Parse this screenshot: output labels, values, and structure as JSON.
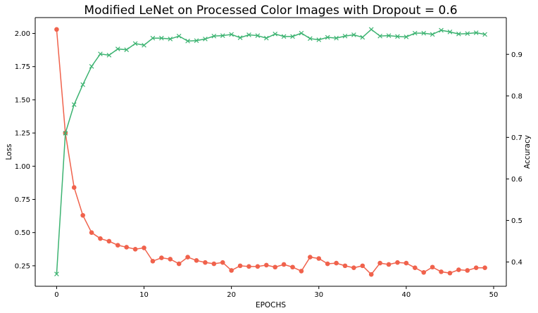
{
  "chart_data": {
    "type": "line",
    "title": "Modified LeNet on Processed Color Images with Dropout = 0.6",
    "xlabel": "EPOCHS",
    "ylabel_left": "Loss",
    "ylabel_right": "Accuracy",
    "xlim": [
      -2.45,
      51.45
    ],
    "ylim_left": [
      0.0957,
      2.1193
    ],
    "ylim_right": [
      0.3415,
      0.9885
    ],
    "x_ticks": [
      0,
      10,
      20,
      30,
      40,
      50
    ],
    "y_left_ticks": [
      0.25,
      0.5,
      0.75,
      1.0,
      1.25,
      1.5,
      1.75,
      2.0
    ],
    "y_left_tick_labels": [
      "0.25",
      "0.50",
      "0.75",
      "1.00",
      "1.25",
      "1.50",
      "1.75",
      "2.00"
    ],
    "y_right_ticks": [
      0.4,
      0.5,
      0.6,
      0.7,
      0.8,
      0.9
    ],
    "y_right_tick_labels": [
      "0.4",
      "0.5",
      "0.6",
      "0.7",
      "0.8",
      "0.9"
    ],
    "grid": false,
    "legend": false,
    "series": [
      {
        "axis": "left",
        "marker": "circle",
        "color": "#f0624c",
        "x": [
          0,
          1,
          2,
          3,
          4,
          5,
          6,
          7,
          8,
          9,
          10,
          11,
          12,
          13,
          14,
          15,
          16,
          17,
          18,
          19,
          20,
          21,
          22,
          23,
          24,
          25,
          26,
          27,
          28,
          29,
          30,
          31,
          32,
          33,
          34,
          35,
          36,
          37,
          38,
          39,
          40,
          41,
          42,
          43,
          44,
          45,
          46,
          47,
          48,
          49
        ],
        "values": [
          2.03,
          1.25,
          0.84,
          0.63,
          0.5,
          0.455,
          0.435,
          0.405,
          0.39,
          0.375,
          0.385,
          0.285,
          0.31,
          0.3,
          0.265,
          0.315,
          0.29,
          0.275,
          0.265,
          0.275,
          0.215,
          0.25,
          0.245,
          0.245,
          0.255,
          0.24,
          0.26,
          0.24,
          0.21,
          0.315,
          0.305,
          0.265,
          0.27,
          0.25,
          0.235,
          0.25,
          0.185,
          0.27,
          0.26,
          0.275,
          0.27,
          0.235,
          0.2,
          0.24,
          0.205,
          0.195,
          0.22,
          0.215,
          0.235,
          0.235
        ]
      },
      {
        "axis": "right",
        "marker": "x",
        "color": "#3cb371",
        "x": [
          0,
          1,
          2,
          3,
          4,
          5,
          6,
          7,
          8,
          9,
          10,
          11,
          12,
          13,
          14,
          15,
          16,
          17,
          18,
          19,
          20,
          21,
          22,
          23,
          24,
          25,
          26,
          27,
          28,
          29,
          30,
          31,
          32,
          33,
          34,
          35,
          36,
          37,
          38,
          39,
          40,
          41,
          42,
          43,
          44,
          45,
          46,
          47,
          48,
          49
        ],
        "values": [
          0.371,
          0.71,
          0.779,
          0.827,
          0.871,
          0.901,
          0.898,
          0.913,
          0.911,
          0.926,
          0.922,
          0.939,
          0.939,
          0.937,
          0.944,
          0.932,
          0.933,
          0.937,
          0.944,
          0.945,
          0.948,
          0.94,
          0.947,
          0.945,
          0.939,
          0.949,
          0.943,
          0.943,
          0.951,
          0.938,
          0.935,
          0.941,
          0.939,
          0.944,
          0.947,
          0.941,
          0.96,
          0.944,
          0.945,
          0.943,
          0.942,
          0.951,
          0.951,
          0.948,
          0.958,
          0.954,
          0.949,
          0.95,
          0.952,
          0.948
        ]
      }
    ]
  }
}
